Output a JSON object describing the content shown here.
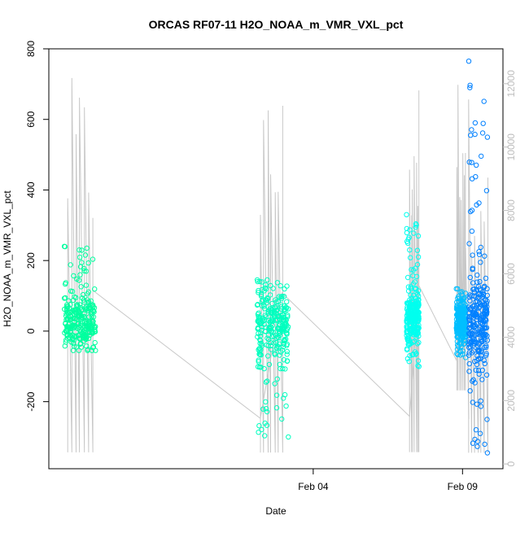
{
  "chart_data": {
    "type": "scatter",
    "title": "ORCAS RF07-11 H2O_NOAA_m_VMR_VXL_pct",
    "xlabel": "Date",
    "ylabel": "H2O_NOAA_m_VMR_VXL_pct",
    "xlim": [
      -18.5,
      54.5
    ],
    "ylim": [
      -390,
      800
    ],
    "y2lim": [
      -150,
      13100
    ],
    "x_axis_ticks": [
      {
        "x": 24,
        "label": "Feb 04"
      },
      {
        "x": 48,
        "label": "Feb 09"
      }
    ],
    "y_axis_ticks": [
      -200,
      0,
      200,
      400,
      600,
      800
    ],
    "y2_axis_ticks": [
      0,
      2000,
      4000,
      6000,
      8000,
      10000,
      12000
    ],
    "y2_axis_color": "#bdbdbd",
    "grid": false,
    "series": [
      {
        "color": "#00ff9f",
        "x_range": [
          -16,
          -11
        ],
        "y_core": [
          -20,
          60
        ],
        "y_range": [
          -55,
          240
        ],
        "altitude_x_range": [
          -15.5,
          -11.5
        ],
        "altitude_range": [
          0,
          12200
        ]
      },
      {
        "color": "#00ffbf",
        "x_range": [
          15,
          20
        ],
        "y_core": [
          -30,
          80
        ],
        "y_range": [
          -300,
          145
        ],
        "altitude_x_range": [
          15.5,
          19
        ],
        "altitude_range": [
          0,
          12000
        ]
      },
      {
        "color": "#00ffef",
        "x_range": [
          39,
          41
        ],
        "y_core": [
          0,
          80
        ],
        "y_range": [
          -100,
          330
        ],
        "altitude_x_range": [
          39.5,
          41
        ],
        "altitude_range": [
          0,
          12500
        ]
      },
      {
        "color": "#00bfff",
        "x_range": [
          47,
          48.5
        ],
        "y_core": [
          0,
          60
        ],
        "y_range": [
          -75,
          120
        ],
        "altitude_x_range": [
          47,
          48.5
        ],
        "altitude_range": [
          2000,
          12700
        ]
      },
      {
        "color": "#0080ff",
        "x_range": [
          49,
          52
        ],
        "y_core": [
          -50,
          100
        ],
        "y_range": [
          -345,
          765
        ],
        "altitude_x_range": [
          49,
          52
        ],
        "altitude_range": [
          0,
          11800
        ]
      }
    ]
  }
}
